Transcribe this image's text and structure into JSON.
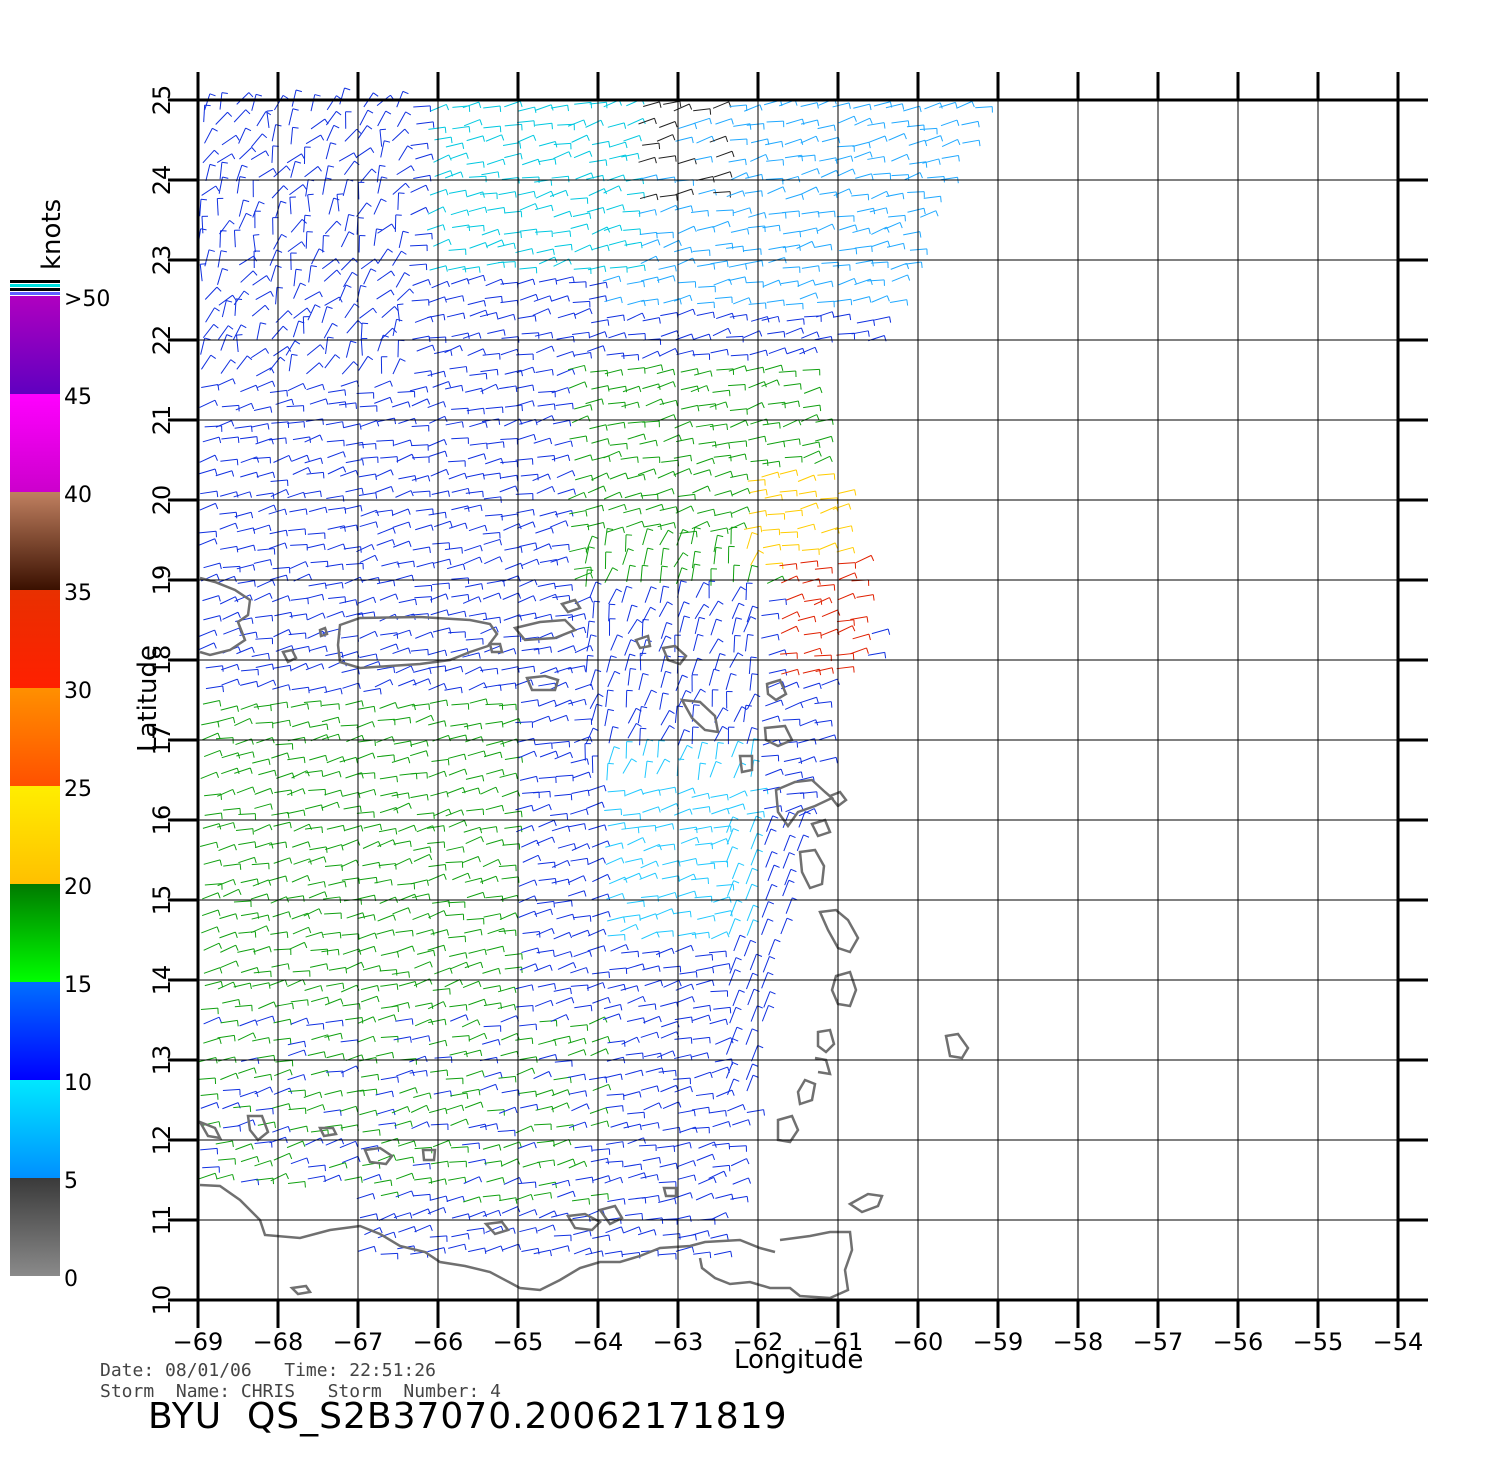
{
  "colorbar": {
    "unit_label": "knots",
    "ticks": [
      "0",
      "5",
      "10",
      "15",
      "20",
      "25",
      "30",
      "35",
      "40",
      "45",
      ">50"
    ],
    "bands": [
      {
        "from": 0,
        "to": 5,
        "top": "#3a3a3a",
        "bottom": "#8a8a8a"
      },
      {
        "from": 5,
        "to": 10,
        "top": "#00e8ff",
        "bottom": "#0090ff"
      },
      {
        "from": 10,
        "to": 15,
        "top": "#0070ff",
        "bottom": "#0000ff"
      },
      {
        "from": 15,
        "to": 20,
        "top": "#007a00",
        "bottom": "#00ff00"
      },
      {
        "from": 20,
        "to": 25,
        "top": "#ffee00",
        "bottom": "#ffc000"
      },
      {
        "from": 25,
        "to": 30,
        "top": "#ff9000",
        "bottom": "#ff5000"
      },
      {
        "from": 30,
        "to": 35,
        "top": "#e83000",
        "bottom": "#ff2000"
      },
      {
        "from": 35,
        "to": 40,
        "top": "#c08060",
        "bottom": "#3a1000"
      },
      {
        "from": 40,
        "to": 45,
        "top": "#ff00ff",
        "bottom": "#cc00cc"
      },
      {
        "from": 45,
        "to": 50,
        "top": "#b000c0",
        "bottom": "#6000c0"
      }
    ]
  },
  "axes": {
    "xlabel": "Longitude",
    "ylabel": "Latitude",
    "x_ticks": [
      "-69",
      "-68",
      "-67",
      "-66",
      "-65",
      "-64",
      "-63",
      "-62",
      "-61",
      "-60",
      "-59",
      "-58",
      "-57",
      "-56",
      "-55",
      "-54"
    ],
    "y_ticks": [
      "10",
      "11",
      "12",
      "13",
      "14",
      "15",
      "16",
      "17",
      "18",
      "19",
      "20",
      "21",
      "22",
      "23",
      "24",
      "25"
    ],
    "xlim": [
      -69,
      -54
    ],
    "ylim": [
      10,
      25
    ],
    "grid": true
  },
  "info": {
    "date_line": "Date: 08/01/06   Time: 22:51:26",
    "storm_line": "Storm  Name: CHRIS   Storm  Number: 4",
    "title": "BYU  QS_S2B37070.20062171819"
  },
  "colors": {
    "coastline": "#707070",
    "grid": "#000000"
  }
}
